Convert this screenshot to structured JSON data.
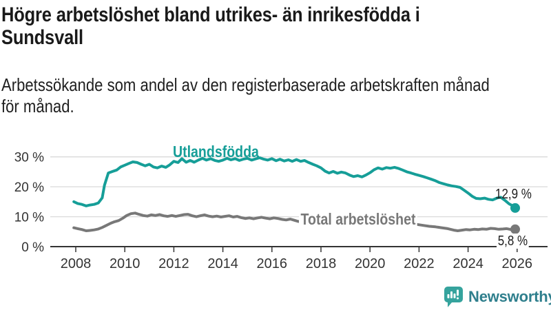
{
  "header": {
    "title_lines": [
      "Högre arbetslöshet bland utrikes- än inrikesfödda i",
      "Sundsvall"
    ],
    "subtitle_lines": [
      "Arbetssökande som andel av den registerbaserade arbetskraften månad",
      "för månad."
    ]
  },
  "chart_data": {
    "type": "line",
    "title": "Högre arbetslöshet bland utrikes- än inrikesfödda i Sundsvall",
    "subtitle": "Arbetssökande som andel av den registerbaserade arbetskraften månad för månad.",
    "unit": "percent of registered labour force",
    "x_unit": "year (monthly observations)",
    "grid": "horizontal",
    "legend": "inline-labels",
    "x_ticks": [
      2008,
      2010,
      2012,
      2014,
      2016,
      2018,
      2020,
      2022,
      2024,
      2026
    ],
    "x_tick_labels": [
      "2008",
      "2010",
      "2012",
      "2014",
      "2016",
      "2018",
      "2020",
      "2022",
      "2024",
      "2026"
    ],
    "y_ticks": [
      0,
      10,
      20,
      30
    ],
    "y_tick_labels": [
      "0 %",
      "10 %",
      "20 %",
      "30 %"
    ],
    "x_range": [
      2006.9,
      2027.25
    ],
    "y_range": [
      0,
      33
    ],
    "series": [
      {
        "name": "Utlandsfödda",
        "color": "#169e98",
        "end_label": "12,9 %",
        "end_value": 12.9,
        "points": [
          [
            2007.92,
            15.0
          ],
          [
            2008.08,
            14.4
          ],
          [
            2008.25,
            14.1
          ],
          [
            2008.42,
            13.6
          ],
          [
            2008.58,
            13.9
          ],
          [
            2008.75,
            14.1
          ],
          [
            2008.92,
            14.6
          ],
          [
            2009.08,
            16.3
          ],
          [
            2009.17,
            20.5
          ],
          [
            2009.33,
            24.6
          ],
          [
            2009.5,
            25.1
          ],
          [
            2009.67,
            25.6
          ],
          [
            2009.83,
            26.6
          ],
          [
            2010.0,
            27.2
          ],
          [
            2010.17,
            27.8
          ],
          [
            2010.33,
            28.3
          ],
          [
            2010.5,
            28.1
          ],
          [
            2010.67,
            27.5
          ],
          [
            2010.83,
            27.0
          ],
          [
            2011.0,
            27.5
          ],
          [
            2011.17,
            26.6
          ],
          [
            2011.33,
            26.3
          ],
          [
            2011.5,
            26.9
          ],
          [
            2011.67,
            26.5
          ],
          [
            2011.83,
            27.3
          ],
          [
            2012.0,
            28.5
          ],
          [
            2012.17,
            28.1
          ],
          [
            2012.33,
            29.4
          ],
          [
            2012.5,
            28.2
          ],
          [
            2012.67,
            28.8
          ],
          [
            2012.83,
            28.2
          ],
          [
            2013.0,
            28.9
          ],
          [
            2013.17,
            29.5
          ],
          [
            2013.33,
            28.9
          ],
          [
            2013.5,
            29.4
          ],
          [
            2013.67,
            28.8
          ],
          [
            2013.83,
            28.5
          ],
          [
            2014.0,
            28.9
          ],
          [
            2014.17,
            29.5
          ],
          [
            2014.33,
            29.0
          ],
          [
            2014.5,
            29.4
          ],
          [
            2014.67,
            28.8
          ],
          [
            2014.83,
            29.2
          ],
          [
            2015.0,
            29.5
          ],
          [
            2015.17,
            28.9
          ],
          [
            2015.33,
            29.3
          ],
          [
            2015.5,
            29.7
          ],
          [
            2015.67,
            29.2
          ],
          [
            2015.83,
            28.9
          ],
          [
            2016.0,
            29.4
          ],
          [
            2016.17,
            28.7
          ],
          [
            2016.33,
            29.2
          ],
          [
            2016.5,
            28.6
          ],
          [
            2016.67,
            29.0
          ],
          [
            2016.83,
            28.5
          ],
          [
            2017.0,
            29.1
          ],
          [
            2017.17,
            28.5
          ],
          [
            2017.33,
            28.8
          ],
          [
            2017.5,
            28.1
          ],
          [
            2017.67,
            27.5
          ],
          [
            2017.83,
            27.0
          ],
          [
            2018.0,
            26.3
          ],
          [
            2018.17,
            25.2
          ],
          [
            2018.33,
            24.6
          ],
          [
            2018.5,
            25.1
          ],
          [
            2018.67,
            24.5
          ],
          [
            2018.83,
            24.9
          ],
          [
            2019.0,
            24.6
          ],
          [
            2019.17,
            23.9
          ],
          [
            2019.33,
            23.4
          ],
          [
            2019.5,
            23.7
          ],
          [
            2019.67,
            23.3
          ],
          [
            2019.83,
            23.9
          ],
          [
            2020.0,
            24.7
          ],
          [
            2020.17,
            25.7
          ],
          [
            2020.33,
            26.3
          ],
          [
            2020.5,
            25.9
          ],
          [
            2020.67,
            26.4
          ],
          [
            2020.83,
            26.2
          ],
          [
            2021.0,
            26.5
          ],
          [
            2021.17,
            26.1
          ],
          [
            2021.33,
            25.6
          ],
          [
            2021.5,
            25.0
          ],
          [
            2021.67,
            24.6
          ],
          [
            2021.83,
            24.2
          ],
          [
            2022.0,
            23.8
          ],
          [
            2022.17,
            23.4
          ],
          [
            2022.33,
            23.0
          ],
          [
            2022.5,
            22.5
          ],
          [
            2022.67,
            22.0
          ],
          [
            2022.83,
            21.4
          ],
          [
            2023.0,
            21.0
          ],
          [
            2023.17,
            20.6
          ],
          [
            2023.33,
            20.3
          ],
          [
            2023.5,
            20.1
          ],
          [
            2023.67,
            19.8
          ],
          [
            2023.83,
            18.9
          ],
          [
            2024.0,
            17.9
          ],
          [
            2024.17,
            16.8
          ],
          [
            2024.33,
            16.1
          ],
          [
            2024.5,
            16.0
          ],
          [
            2024.67,
            16.2
          ],
          [
            2024.83,
            15.8
          ],
          [
            2025.0,
            15.6
          ],
          [
            2025.17,
            16.2
          ],
          [
            2025.33,
            16.5
          ],
          [
            2025.5,
            15.5
          ],
          [
            2025.67,
            14.3
          ],
          [
            2025.83,
            13.6
          ],
          [
            2025.92,
            12.9
          ]
        ]
      },
      {
        "name": "Total arbetslöshet",
        "color": "#787878",
        "end_label": "5,8 %",
        "end_value": 5.8,
        "points": [
          [
            2007.92,
            6.3
          ],
          [
            2008.08,
            6.0
          ],
          [
            2008.25,
            5.7
          ],
          [
            2008.42,
            5.3
          ],
          [
            2008.58,
            5.4
          ],
          [
            2008.75,
            5.6
          ],
          [
            2008.92,
            5.9
          ],
          [
            2009.08,
            6.4
          ],
          [
            2009.25,
            7.1
          ],
          [
            2009.42,
            7.8
          ],
          [
            2009.58,
            8.3
          ],
          [
            2009.75,
            8.7
          ],
          [
            2009.92,
            9.5
          ],
          [
            2010.08,
            10.4
          ],
          [
            2010.25,
            11.0
          ],
          [
            2010.42,
            11.2
          ],
          [
            2010.58,
            10.8
          ],
          [
            2010.75,
            10.4
          ],
          [
            2010.92,
            10.2
          ],
          [
            2011.08,
            10.6
          ],
          [
            2011.25,
            10.4
          ],
          [
            2011.42,
            10.7
          ],
          [
            2011.58,
            10.3
          ],
          [
            2011.75,
            10.1
          ],
          [
            2011.92,
            10.4
          ],
          [
            2012.08,
            10.1
          ],
          [
            2012.25,
            10.4
          ],
          [
            2012.42,
            10.7
          ],
          [
            2012.58,
            10.8
          ],
          [
            2012.75,
            10.3
          ],
          [
            2012.92,
            10.0
          ],
          [
            2013.08,
            10.3
          ],
          [
            2013.25,
            10.6
          ],
          [
            2013.42,
            10.2
          ],
          [
            2013.58,
            10.0
          ],
          [
            2013.75,
            10.2
          ],
          [
            2013.92,
            9.9
          ],
          [
            2014.08,
            10.1
          ],
          [
            2014.25,
            10.3
          ],
          [
            2014.42,
            9.9
          ],
          [
            2014.58,
            10.1
          ],
          [
            2014.75,
            9.7
          ],
          [
            2014.92,
            9.4
          ],
          [
            2015.08,
            9.6
          ],
          [
            2015.25,
            9.3
          ],
          [
            2015.42,
            9.6
          ],
          [
            2015.58,
            9.8
          ],
          [
            2015.75,
            9.5
          ],
          [
            2015.92,
            9.3
          ],
          [
            2016.08,
            9.6
          ],
          [
            2016.25,
            9.4
          ],
          [
            2016.42,
            9.1
          ],
          [
            2016.58,
            8.9
          ],
          [
            2016.75,
            9.2
          ],
          [
            2016.92,
            8.8
          ],
          [
            2017.08,
            8.4
          ],
          [
            2017.25,
            8.7
          ],
          [
            2017.42,
            8.4
          ],
          [
            2017.58,
            8.6
          ],
          [
            2017.75,
            8.3
          ],
          [
            2017.92,
            8.2
          ],
          [
            2018.17,
            8.0
          ],
          [
            2018.42,
            7.8
          ],
          [
            2018.67,
            7.9
          ],
          [
            2018.92,
            7.7
          ],
          [
            2019.17,
            7.5
          ],
          [
            2019.42,
            7.4
          ],
          [
            2019.67,
            7.5
          ],
          [
            2019.92,
            7.7
          ],
          [
            2020.17,
            8.5
          ],
          [
            2020.42,
            9.1
          ],
          [
            2020.67,
            9.2
          ],
          [
            2020.92,
            8.9
          ],
          [
            2021.17,
            8.6
          ],
          [
            2021.42,
            8.2
          ],
          [
            2021.67,
            7.8
          ],
          [
            2021.92,
            7.4
          ],
          [
            2022.17,
            7.1
          ],
          [
            2022.42,
            6.8
          ],
          [
            2022.67,
            6.6
          ],
          [
            2022.92,
            6.3
          ],
          [
            2023.17,
            6.0
          ],
          [
            2023.42,
            5.5
          ],
          [
            2023.58,
            5.3
          ],
          [
            2023.75,
            5.5
          ],
          [
            2023.92,
            5.7
          ],
          [
            2024.08,
            5.6
          ],
          [
            2024.25,
            5.8
          ],
          [
            2024.42,
            5.7
          ],
          [
            2024.58,
            5.9
          ],
          [
            2024.75,
            5.8
          ],
          [
            2024.92,
            6.1
          ],
          [
            2025.08,
            6.0
          ],
          [
            2025.25,
            5.8
          ],
          [
            2025.42,
            5.9
          ],
          [
            2025.58,
            6.0
          ],
          [
            2025.75,
            5.7
          ],
          [
            2025.92,
            5.8
          ]
        ]
      }
    ]
  },
  "footer": {
    "brand": "Newsworthy"
  },
  "colors": {
    "accent_teal": "#169e98",
    "series_gray": "#787878",
    "axis": "#333333",
    "grid": "#d9d9d9",
    "text": "#1a1a1a",
    "logo_icon": "#35a39d",
    "logo_text": "#2f7f8d"
  }
}
